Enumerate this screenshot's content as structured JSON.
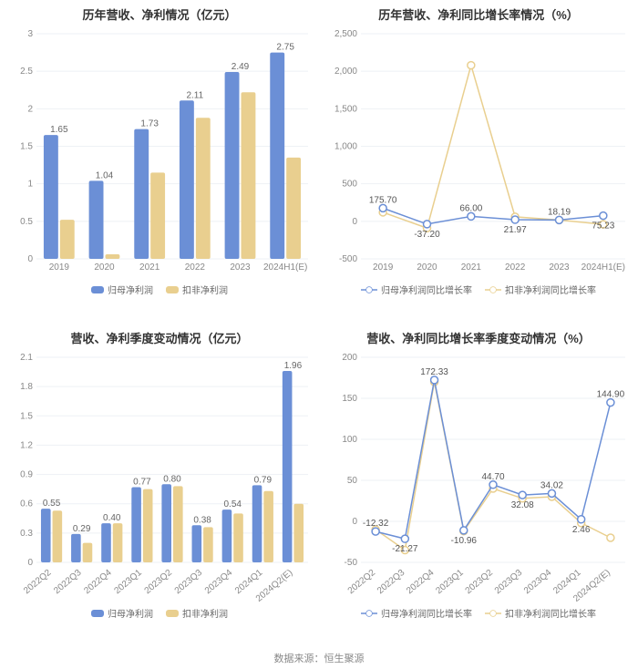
{
  "footer": "数据来源：恒生聚源",
  "colors": {
    "blue": "#6b8fd6",
    "yellow": "#e9cf8f",
    "grid": "#eef1f5",
    "axis_text": "#888888",
    "title": "#333333",
    "bg": "#ffffff"
  },
  "panels": {
    "tl": {
      "title": "历年营收、净利情况（亿元）",
      "type": "bar",
      "categories": [
        "2019",
        "2020",
        "2021",
        "2022",
        "2023",
        "2024H1(E)"
      ],
      "series": [
        {
          "name": "归母净利润",
          "color": "#6b8fd6",
          "values": [
            1.65,
            1.04,
            1.73,
            2.11,
            2.49,
            2.75
          ],
          "labels": [
            "1.65",
            "1.04",
            "1.73",
            "2.11",
            "2.49",
            "2.75"
          ]
        },
        {
          "name": "扣非净利润",
          "color": "#e9cf8f",
          "values": [
            0.52,
            0.06,
            1.15,
            1.88,
            2.22,
            1.35
          ],
          "labels": [
            "",
            "",
            "",
            "",
            "",
            ""
          ]
        }
      ],
      "ylim": [
        0,
        3
      ],
      "ytick_step": 0.5,
      "bar_width": 0.32,
      "label_fontsize": 10,
      "title_fontsize": 13
    },
    "tr": {
      "title": "历年营收、净利同比增长率情况（%）",
      "type": "line",
      "categories": [
        "2019",
        "2020",
        "2021",
        "2022",
        "2023",
        "2024H1(E)"
      ],
      "series": [
        {
          "name": "归母净利润同比增长率",
          "color": "#6b8fd6",
          "values": [
            175.7,
            -37.2,
            66.0,
            21.97,
            18.19,
            75.23
          ],
          "labels": [
            "175.70",
            "-37.20",
            "66.00",
            "21.97",
            "18.19",
            "75.23"
          ]
        },
        {
          "name": "扣非净利润同比增长率",
          "color": "#e9cf8f",
          "values": [
            120,
            -90,
            2080,
            60,
            18,
            -40
          ],
          "labels": [
            "",
            "",
            "",
            "",
            "",
            ""
          ]
        }
      ],
      "ylim": [
        -500,
        2500
      ],
      "ytick_step": 500,
      "marker_size": 4,
      "line_width": 1.5,
      "label_fontsize": 10,
      "title_fontsize": 13
    },
    "bl": {
      "title": "营收、净利季度变动情况（亿元）",
      "type": "bar",
      "categories": [
        "2022Q2",
        "2022Q3",
        "2022Q4",
        "2023Q1",
        "2023Q2",
        "2023Q3",
        "2023Q4",
        "2024Q1",
        "2024Q2(E)"
      ],
      "series": [
        {
          "name": "归母净利润",
          "color": "#6b8fd6",
          "values": [
            0.55,
            0.29,
            0.4,
            0.77,
            0.8,
            0.38,
            0.54,
            0.79,
            1.96
          ],
          "labels": [
            "0.55",
            "0.29",
            "0.40",
            "0.77",
            "0.80",
            "0.38",
            "0.54",
            "0.79",
            "1.96"
          ]
        },
        {
          "name": "扣非净利润",
          "color": "#e9cf8f",
          "values": [
            0.53,
            0.2,
            0.4,
            0.75,
            0.78,
            0.36,
            0.5,
            0.73,
            0.6
          ],
          "labels": [
            "",
            "",
            "",
            "",
            "",
            "",
            "",
            "",
            ""
          ]
        }
      ],
      "ylim": [
        0,
        2.1
      ],
      "ytick_step": 0.3,
      "bar_width": 0.32,
      "label_fontsize": 10,
      "title_fontsize": 13,
      "xrotate": -40
    },
    "br": {
      "title": "营收、净利同比增长率季度变动情况（%）",
      "type": "line",
      "categories": [
        "2022Q2",
        "2022Q3",
        "2022Q4",
        "2023Q1",
        "2023Q2",
        "2023Q3",
        "2023Q4",
        "2024Q1",
        "2024Q2(E)"
      ],
      "series": [
        {
          "name": "归母净利润同比增长率",
          "color": "#6b8fd6",
          "values": [
            -12.32,
            -21.27,
            172.33,
            -10.96,
            44.7,
            32.08,
            34.02,
            2.46,
            144.9
          ],
          "labels": [
            "-12.32",
            "-21.27",
            "172.33",
            "-10.96",
            "44.70",
            "32.08",
            "34.02",
            "2.46",
            "144.90"
          ]
        },
        {
          "name": "扣非净利润同比增长率",
          "color": "#e9cf8f",
          "values": [
            -10,
            -35,
            170,
            -12,
            40,
            28,
            30,
            -2,
            -20
          ],
          "labels": [
            "",
            "",
            "",
            "",
            "",
            "",
            "",
            "",
            ""
          ]
        }
      ],
      "ylim": [
        -50,
        200
      ],
      "ytick_step": 50,
      "marker_size": 4,
      "line_width": 1.5,
      "label_fontsize": 10,
      "title_fontsize": 13,
      "xrotate": -40
    }
  }
}
